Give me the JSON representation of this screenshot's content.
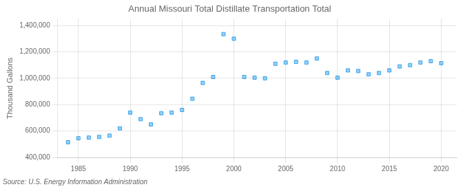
{
  "chart_data": {
    "type": "scatter",
    "title": "Annual Missouri Total Distillate Transportation Total",
    "ylabel": "Thousand Gallons",
    "annotations": [
      "Source: U.S. Energy Information Administration"
    ],
    "marker": "square",
    "grid": true,
    "x": [
      1984,
      1985,
      1986,
      1987,
      1988,
      1989,
      1990,
      1991,
      1992,
      1993,
      1994,
      1995,
      1996,
      1997,
      1998,
      1999,
      2000,
      2001,
      2002,
      2003,
      2004,
      2005,
      2006,
      2007,
      2008,
      2009,
      2010,
      2011,
      2012,
      2013,
      2014,
      2015,
      2016,
      2017,
      2018,
      2019,
      2020
    ],
    "values": [
      515000,
      545000,
      550000,
      555000,
      565000,
      620000,
      740000,
      690000,
      650000,
      735000,
      740000,
      760000,
      845000,
      965000,
      1010000,
      1335000,
      1300000,
      1010000,
      1005000,
      1000000,
      1110000,
      1120000,
      1125000,
      1120000,
      1150000,
      1040000,
      1005000,
      1060000,
      1055000,
      1030000,
      1040000,
      1060000,
      1090000,
      1100000,
      1120000,
      1130000,
      1115000
    ],
    "xlim": [
      1983,
      2021.5
    ],
    "xticks": [
      1985,
      1990,
      1995,
      2000,
      2005,
      2010,
      2015,
      2020
    ],
    "ylim": [
      400000,
      1450000
    ],
    "yticks": [
      {
        "value": 400000,
        "label": "400,000"
      },
      {
        "value": 600000,
        "label": "600,000"
      },
      {
        "value": 800000,
        "label": "800,000"
      },
      {
        "value": 1000000,
        "label": "1,000,000"
      },
      {
        "value": 1200000,
        "label": "1,200,000"
      },
      {
        "value": 1400000,
        "label": "1,400,000"
      }
    ]
  }
}
